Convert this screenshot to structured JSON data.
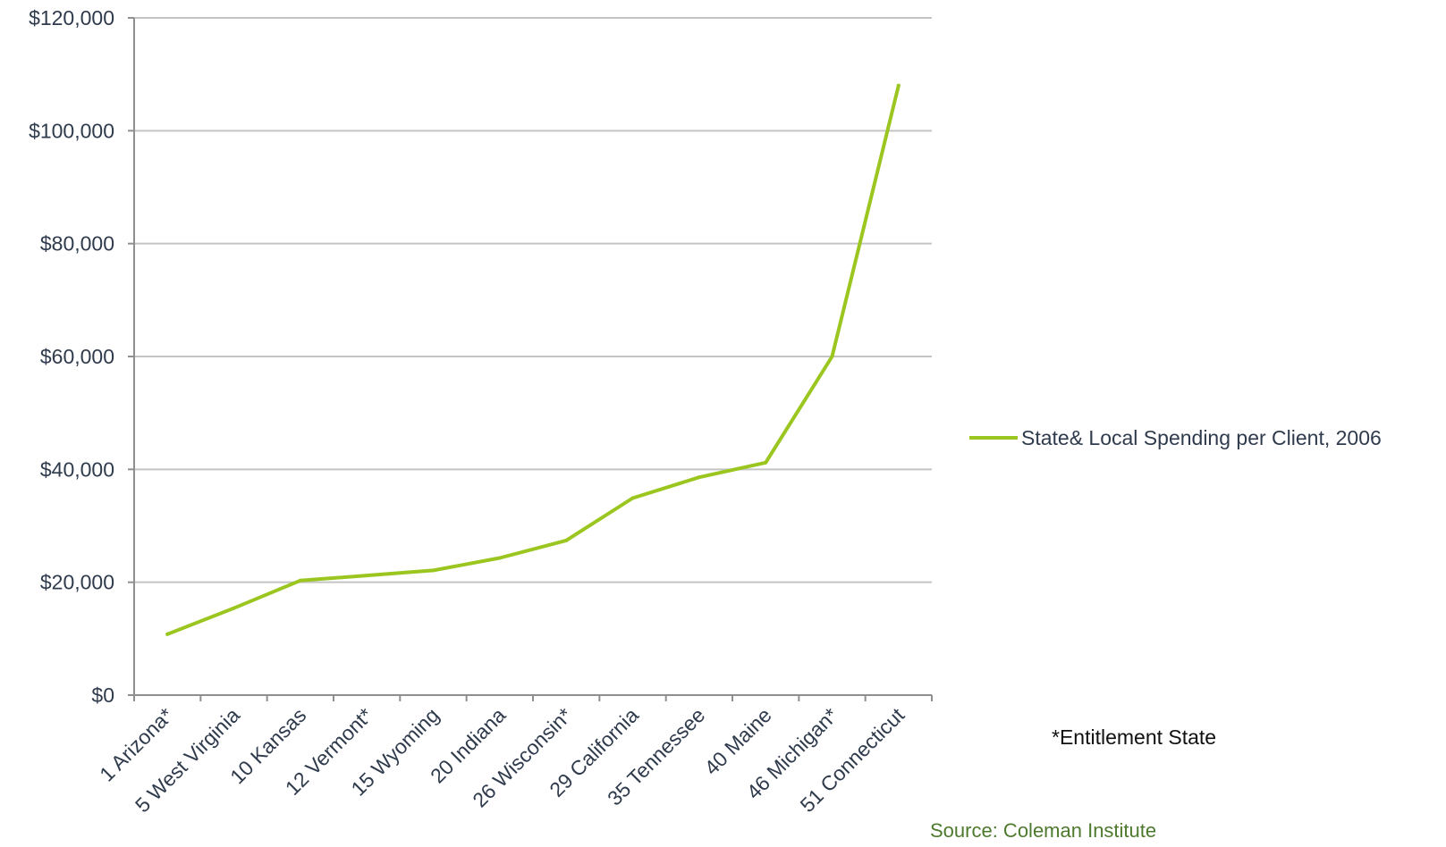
{
  "chart_data": {
    "type": "line",
    "categories": [
      "1 Arizona*",
      "5 West Virginia",
      "10 Kansas",
      "12 Vermont*",
      "15 Wyoming",
      "20 Indiana",
      "26 Wisconsin*",
      "29 California",
      "35 Tennessee",
      "40 Maine",
      "46 Michigan*",
      "51 Connecticut"
    ],
    "series": [
      {
        "name": "State& Local Spending per Client, 2006",
        "values": [
          10800,
          15400,
          20300,
          21200,
          22100,
          24300,
          27400,
          34900,
          38600,
          41200,
          60000,
          108000
        ]
      }
    ],
    "ylim": [
      0,
      120000
    ],
    "yticks": [
      0,
      20000,
      40000,
      60000,
      80000,
      100000,
      120000
    ],
    "ytick_labels": [
      "$0",
      "$20,000",
      "$40,000",
      "$60,000",
      "$80,000",
      "$100,000",
      "$120,000"
    ],
    "grid": true,
    "legend_position": "right",
    "line_color": "#9ac61f"
  },
  "annotations": {
    "note": "*Entitlement State",
    "source": "Source: Coleman Institute"
  }
}
